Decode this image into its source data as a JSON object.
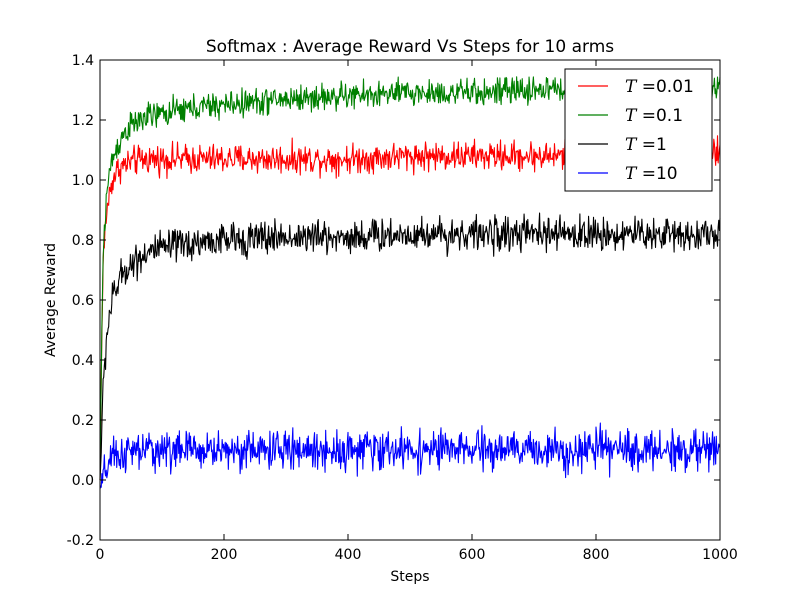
{
  "chart_data": {
    "type": "line",
    "title": "Softmax : Average Reward Vs Steps for 10 arms",
    "xlabel": "Steps",
    "ylabel": "Average Reward",
    "xlim": [
      0,
      1000
    ],
    "ylim": [
      -0.2,
      1.4
    ],
    "xticks": [
      0,
      200,
      400,
      600,
      800,
      1000
    ],
    "xtick_labels": [
      "0",
      "200",
      "400",
      "600",
      "800",
      "1000"
    ],
    "yticks": [
      -0.2,
      0.0,
      0.2,
      0.4,
      0.6,
      0.8,
      1.0,
      1.2,
      1.4
    ],
    "ytick_labels": [
      "-0.2",
      "0.0",
      "0.2",
      "0.4",
      "0.6",
      "0.8",
      "1.0",
      "1.2",
      "1.4"
    ],
    "grid": false,
    "legend_position": "top-right",
    "x": [
      0,
      2,
      5,
      10,
      15,
      20,
      30,
      40,
      50,
      75,
      100,
      150,
      200,
      300,
      400,
      500,
      600,
      700,
      800,
      900,
      1000
    ],
    "series": [
      {
        "name_var": "T",
        "name_value": "0.01",
        "color": "#ff0000",
        "values": [
          0.0,
          0.35,
          0.72,
          0.88,
          0.95,
          1.0,
          1.04,
          1.05,
          1.06,
          1.07,
          1.07,
          1.07,
          1.07,
          1.07,
          1.07,
          1.08,
          1.08,
          1.08,
          1.08,
          1.08,
          1.09
        ],
        "noise_amplitude": 0.03
      },
      {
        "name_var": "T",
        "name_value": "0.1",
        "color": "#008000",
        "values": [
          0.0,
          0.35,
          0.75,
          0.94,
          1.02,
          1.07,
          1.12,
          1.16,
          1.18,
          1.21,
          1.22,
          1.24,
          1.25,
          1.27,
          1.28,
          1.29,
          1.29,
          1.3,
          1.31,
          1.31,
          1.31
        ],
        "noise_amplitude": 0.028
      },
      {
        "name_var": "T",
        "name_value": "1",
        "color": "#000000",
        "values": [
          0.0,
          0.1,
          0.3,
          0.46,
          0.55,
          0.6,
          0.66,
          0.7,
          0.72,
          0.76,
          0.77,
          0.79,
          0.8,
          0.81,
          0.81,
          0.82,
          0.82,
          0.82,
          0.82,
          0.82,
          0.82
        ],
        "noise_amplitude": 0.035
      },
      {
        "name_var": "T",
        "name_value": "10",
        "color": "#0000ff",
        "values": [
          -0.03,
          -0.02,
          0.0,
          0.04,
          0.06,
          0.07,
          0.08,
          0.09,
          0.09,
          0.1,
          0.1,
          0.1,
          0.1,
          0.1,
          0.1,
          0.1,
          0.1,
          0.1,
          0.1,
          0.1,
          0.1
        ],
        "noise_amplitude": 0.04
      }
    ]
  }
}
